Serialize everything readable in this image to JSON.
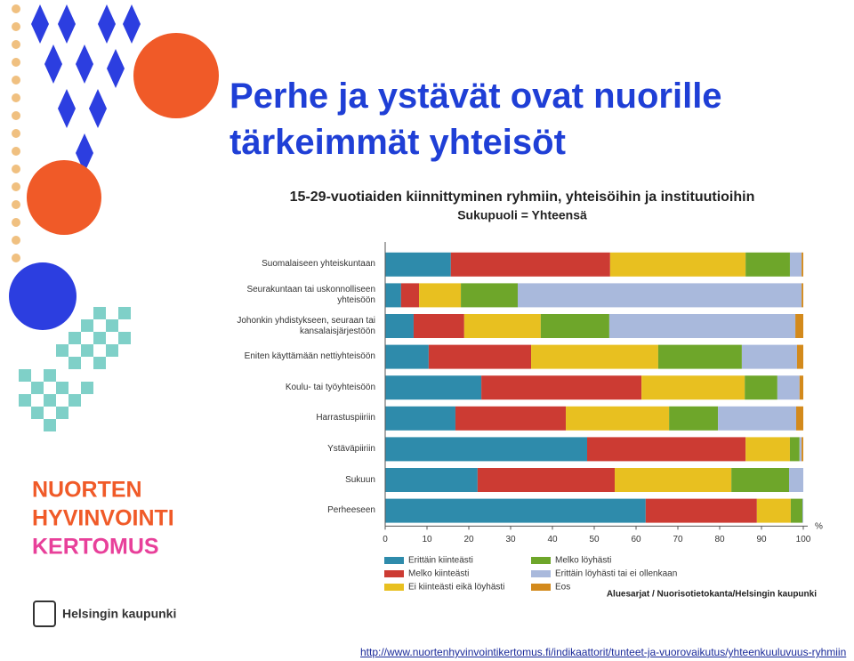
{
  "slide_title": "Perhe ja ystävät ovat nuorille tärkeimmät yhteisöt",
  "logo": {
    "lines": [
      "NUORTEN",
      "HYVINVOINTI",
      "KERTOMUS"
    ],
    "city": "Helsingin kaupunki"
  },
  "url": "http://www.nuortenhyvinvointikertomus.fi/indikaattorit/tunteet-ja-vuorovaikutus/yhteenkuuluvuus-ryhmiin",
  "chart_data": {
    "type": "stacked_barh",
    "title": "15-29-vuotiaiden kiinnittyminen ryhmiin, yhteisöihin ja instituutioihin",
    "subtitle": "Sukupuoli = Yhteensä",
    "source": "Aluesarjat / Nuorisotietokanta/Helsingin kaupunki",
    "xlabel": "%",
    "categories": [
      "Suomalaiseen yhteiskuntaan",
      "Seurakuntaan tai uskonnolliseen yhteisöön",
      "Johonkin yhdistykseen, seuraan tai kansalaisjärjestöön",
      "Eniten käyttämään nettiyhteisöön",
      "Koulu- tai työyhteisöön",
      "Harrastuspiiriin",
      "Ystäväpiiriin",
      "Sukuun",
      "Perheeseen"
    ],
    "series": [
      {
        "name": "Erittäin kiinteästi",
        "color": "#2e8bab",
        "values": [
          15.7,
          3.8,
          6.8,
          10.4,
          23.0,
          16.8,
          48.3,
          22.1,
          62.3
        ]
      },
      {
        "name": "Melko kiinteästi",
        "color": "#cc3b33",
        "values": [
          38.1,
          4.3,
          12.1,
          24.5,
          38.3,
          26.4,
          37.9,
          32.8,
          26.6
        ]
      },
      {
        "name": "Ei kiinteästi eikä löyhästi",
        "color": "#e8c020",
        "values": [
          32.4,
          10.0,
          18.3,
          30.4,
          24.7,
          24.7,
          10.6,
          27.9,
          8.1
        ]
      },
      {
        "name": "Melko löyhästi",
        "color": "#6ea62a",
        "values": [
          10.6,
          13.6,
          16.4,
          20.0,
          7.8,
          11.7,
          2.3,
          13.8,
          2.8
        ]
      },
      {
        "name": "Erittäin löyhästi tai ei ollenkaan",
        "color": "#a9b9dc",
        "values": [
          2.8,
          67.9,
          44.5,
          13.2,
          5.3,
          18.7,
          0.5,
          3.4,
          0.2
        ]
      },
      {
        "name": "Eos",
        "color": "#d38a1c",
        "values": [
          0.4,
          0.4,
          1.9,
          1.5,
          0.9,
          1.7,
          0.4,
          0,
          0
        ]
      }
    ],
    "xlim": [
      0,
      100
    ],
    "xticks": [
      0,
      10,
      20,
      30,
      40,
      50,
      60,
      70,
      80,
      90,
      100
    ]
  }
}
